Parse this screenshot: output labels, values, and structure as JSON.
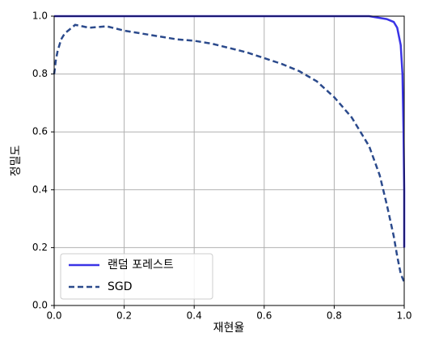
{
  "chart_data": {
    "type": "line",
    "xlabel": "재현율",
    "ylabel": "정밀도",
    "xlim": [
      0,
      1
    ],
    "ylim": [
      0,
      1
    ],
    "xticks": [
      {
        "value": 0,
        "label": "0.0"
      },
      {
        "value": 0.2,
        "label": "0.2"
      },
      {
        "value": 0.4,
        "label": "0.4"
      },
      {
        "value": 0.6,
        "label": "0.6"
      },
      {
        "value": 0.8,
        "label": "0.8"
      },
      {
        "value": 1,
        "label": "1.0"
      }
    ],
    "yticks": [
      {
        "value": 0,
        "label": "0.0"
      },
      {
        "value": 0.2,
        "label": "0.2"
      },
      {
        "value": 0.4,
        "label": "0.4"
      },
      {
        "value": 0.6,
        "label": "0.6"
      },
      {
        "value": 0.8,
        "label": "0.8"
      },
      {
        "value": 1,
        "label": "1.0"
      }
    ],
    "grid": true,
    "legend": "lower left",
    "series": [
      {
        "name": "랜덤 포레스트",
        "color": "#3a34e6",
        "style": "solid",
        "x": [
          0,
          0.3,
          0.6,
          0.9,
          0.95,
          0.97,
          0.98,
          0.99,
          0.995,
          0.998,
          1,
          1
        ],
        "values": [
          1,
          1,
          1,
          1,
          0.99,
          0.98,
          0.96,
          0.9,
          0.8,
          0.6,
          0.4,
          0.2
        ]
      },
      {
        "name": "SGD",
        "color": "#2b4a8c",
        "style": "dashed",
        "x": [
          0,
          0.005,
          0.01,
          0.02,
          0.03,
          0.05,
          0.06,
          0.08,
          0.1,
          0.15,
          0.2,
          0.25,
          0.3,
          0.35,
          0.4,
          0.45,
          0.5,
          0.55,
          0.6,
          0.65,
          0.7,
          0.75,
          0.8,
          0.85,
          0.9,
          0.93,
          0.95,
          0.97,
          0.98,
          0.99,
          1
        ],
        "values": [
          0.8,
          0.85,
          0.88,
          0.92,
          0.94,
          0.96,
          0.97,
          0.965,
          0.96,
          0.965,
          0.95,
          0.94,
          0.93,
          0.92,
          0.915,
          0.905,
          0.89,
          0.875,
          0.855,
          0.835,
          0.81,
          0.775,
          0.72,
          0.65,
          0.55,
          0.45,
          0.35,
          0.24,
          0.17,
          0.11,
          0.08
        ]
      }
    ]
  }
}
